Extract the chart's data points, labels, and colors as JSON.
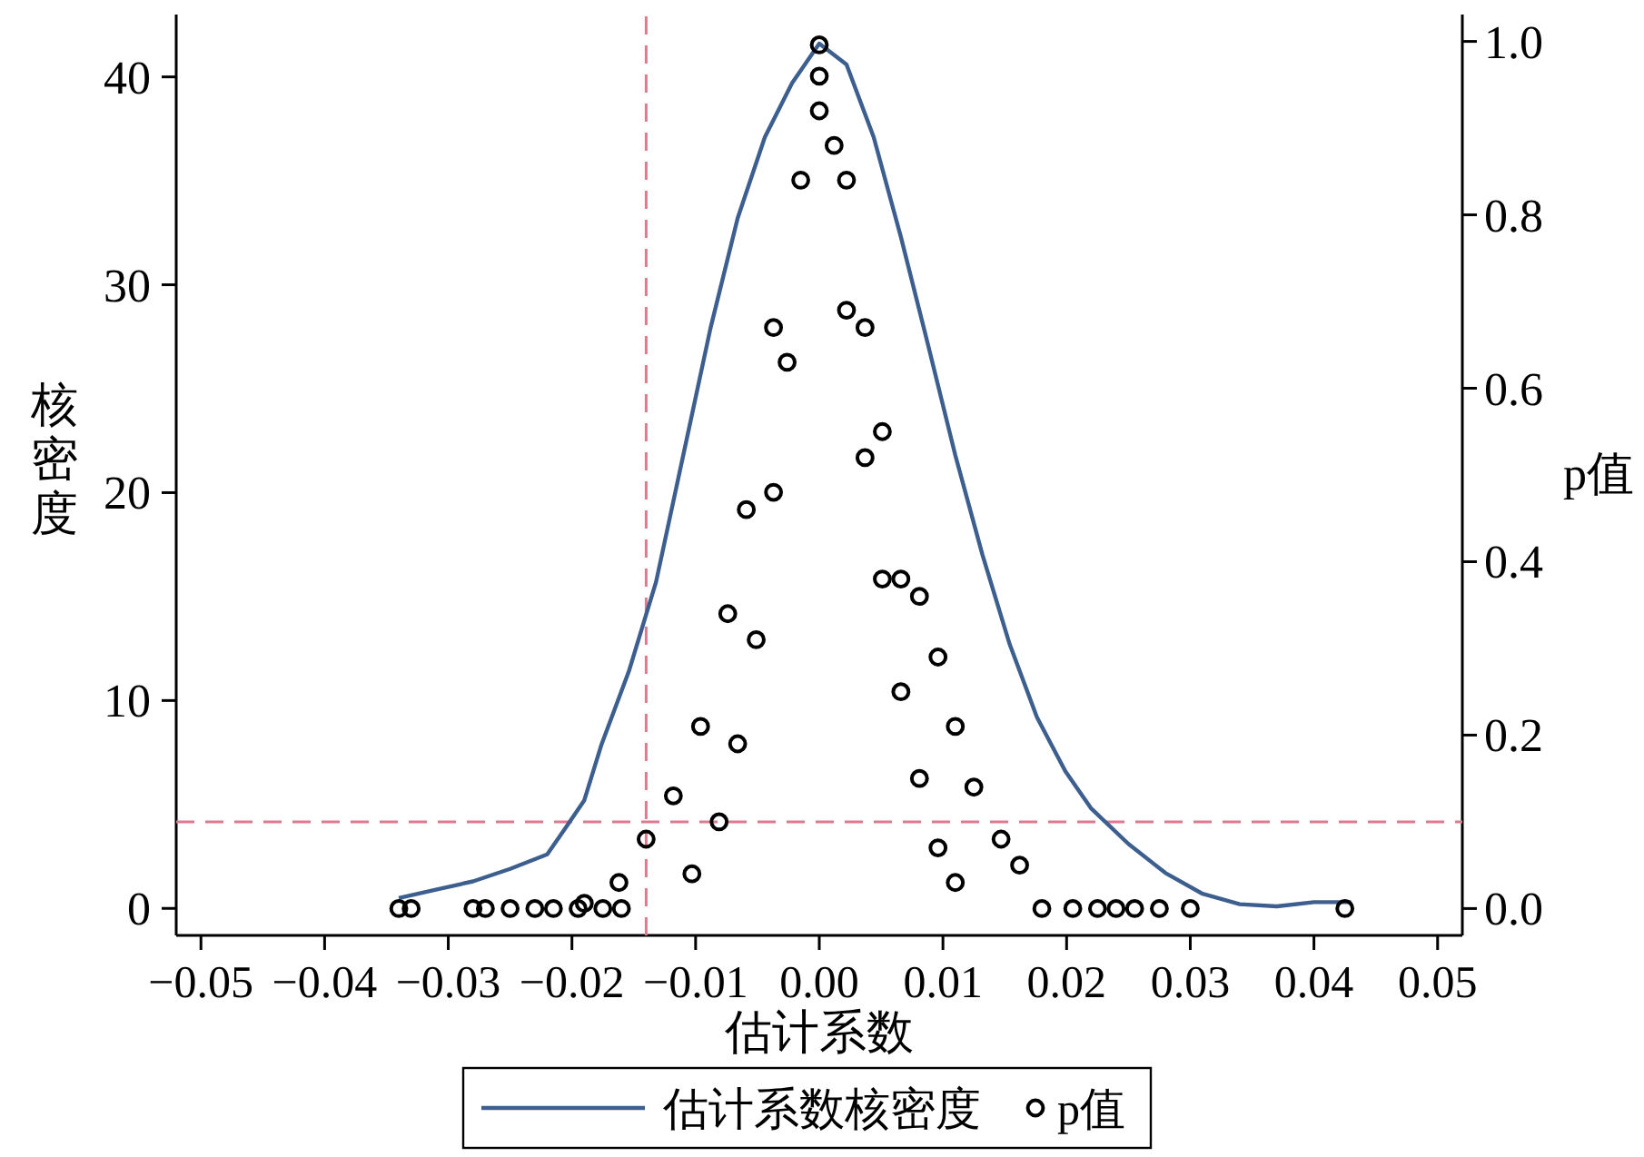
{
  "chart_data": {
    "type": "line",
    "xlabel": "估计系数",
    "ylabel": "核密度",
    "y2label": "p值",
    "legend": "bottom",
    "xlim": [
      -0.052,
      0.052
    ],
    "xticks": [
      {
        "value": -0.05,
        "label": "−0.05"
      },
      {
        "value": -0.04,
        "label": "−0.04"
      },
      {
        "value": -0.03,
        "label": "−0.03"
      },
      {
        "value": -0.02,
        "label": "−0.02"
      },
      {
        "value": -0.01,
        "label": "−0.01"
      },
      {
        "value": 0,
        "label": "0.00"
      },
      {
        "value": 0.01,
        "label": "0.01"
      },
      {
        "value": 0.02,
        "label": "0.02"
      },
      {
        "value": 0.03,
        "label": "0.03"
      },
      {
        "value": 0.04,
        "label": "0.04"
      },
      {
        "value": 0.05,
        "label": "0.05"
      }
    ],
    "ylim": [
      -1.3,
      43
    ],
    "yticks": [
      0,
      10,
      20,
      30,
      40
    ],
    "y2lim": [
      -0.031,
      1.031
    ],
    "y2ticks": [
      {
        "value": 0,
        "label": "0.0"
      },
      {
        "value": 0.2,
        "label": "0.2"
      },
      {
        "value": 0.4,
        "label": "0.4"
      },
      {
        "value": 0.6,
        "label": "0.6"
      },
      {
        "value": 0.8,
        "label": "0.8"
      },
      {
        "value": 1,
        "label": "1.0"
      }
    ],
    "ref_lines": [
      {
        "axis": "x",
        "value": -0.014,
        "color": "#e07890",
        "line_style": "dashed"
      },
      {
        "axis": "y2",
        "value": 0.1,
        "color": "#e07890",
        "line_style": "dashed"
      }
    ],
    "series": [
      {
        "name": "估计系数核密度",
        "color": "#3c5f8f",
        "x": [
          -0.034,
          -0.031,
          -0.028,
          -0.025,
          -0.022,
          -0.0206,
          -0.019,
          -0.0176,
          -0.0154,
          -0.0132,
          -0.011,
          -0.0088,
          -0.0066,
          -0.0044,
          -0.0022,
          0,
          0.0022,
          0.0044,
          0.0066,
          0.0088,
          0.011,
          0.0132,
          0.0154,
          0.0176,
          0.0199,
          0.022,
          0.025,
          0.028,
          0.031,
          0.034,
          0.037,
          0.04,
          0.043
        ],
        "values": [
          0.5,
          0.9,
          1.3,
          1.9,
          2.6,
          3.8,
          5.2,
          7.9,
          11.4,
          15.7,
          21.8,
          27.9,
          33.2,
          37.1,
          39.7,
          41.6,
          40.6,
          37.1,
          32.3,
          27.1,
          21.8,
          17.0,
          12.7,
          9.2,
          6.6,
          4.8,
          3.1,
          1.7,
          0.7,
          0.2,
          0.1,
          0.3,
          0.3
        ]
      },
      {
        "name": "p值",
        "type": "scatter",
        "axis": "y2",
        "color": "#000000",
        "marker": "circle",
        "x": [
          0,
          0,
          0,
          -0.0037,
          -0.0059,
          -0.0074,
          -0.0096,
          -0.0118,
          -0.014,
          -0.0162,
          -0.019,
          -0.0015,
          -0.0026,
          -0.0037,
          -0.0051,
          -0.0066,
          -0.0081,
          -0.0103,
          0.0012,
          0.0022,
          0.0037,
          0.0051,
          0.0066,
          0.0081,
          0.0096,
          0.011,
          0.0022,
          0.0037,
          0.0051,
          0.0066,
          0.0081,
          0.0096,
          0.011,
          0.0125,
          0.0147,
          0.0162,
          -0.034,
          -0.033,
          -0.028,
          -0.027,
          -0.025,
          -0.023,
          -0.0215,
          -0.0195,
          -0.0175,
          -0.016,
          0.018,
          0.0205,
          0.0225,
          0.024,
          0.0255,
          0.0275,
          0.03,
          0.0425
        ],
        "values": [
          0.996,
          0.96,
          0.92,
          0.67,
          0.46,
          0.34,
          0.21,
          0.13,
          0.08,
          0.03,
          0.006,
          0.84,
          0.63,
          0.48,
          0.31,
          0.19,
          0.1,
          0.04,
          0.88,
          0.69,
          0.52,
          0.38,
          0.25,
          0.15,
          0.07,
          0.03,
          0.84,
          0.67,
          0.55,
          0.38,
          0.36,
          0.29,
          0.21,
          0.14,
          0.08,
          0.05,
          0,
          0,
          0,
          0,
          0,
          0,
          0,
          0,
          0,
          0,
          0,
          0,
          0,
          0,
          0,
          0,
          0,
          0
        ]
      }
    ]
  }
}
